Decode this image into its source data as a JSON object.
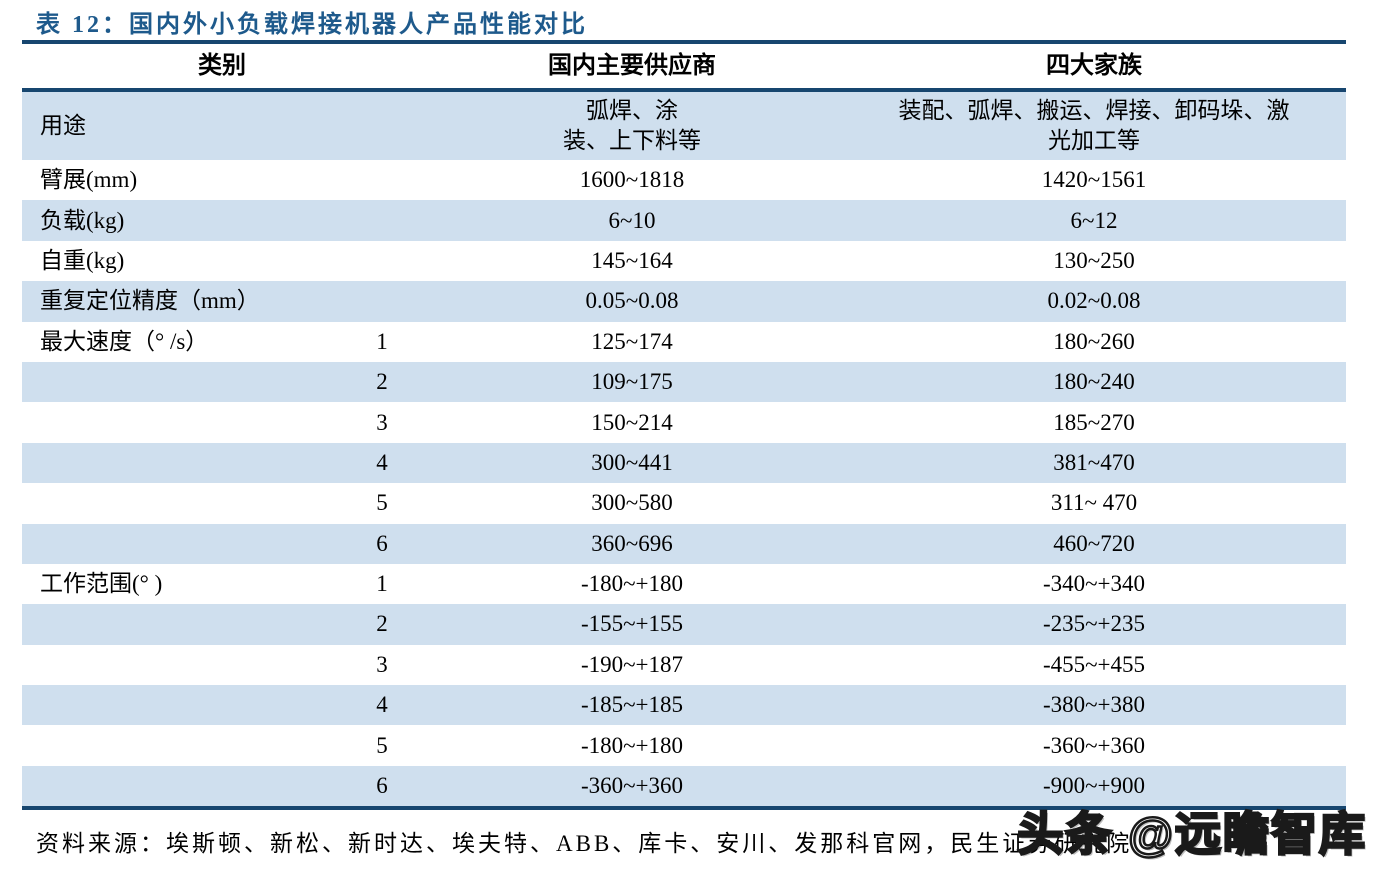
{
  "page": {
    "title": "表 12：国内外小负载焊接机器人产品性能对比"
  },
  "table": {
    "headers": {
      "category": "类别",
      "domestic": "国内主要供应商",
      "big_four": "四大家族"
    },
    "rows": [
      {
        "label": "用途",
        "axis": "",
        "domestic": "弧焊、涂\n装、上下料等",
        "big_four": "装配、弧焊、搬运、焊接、卸码垛、激\n光加工等"
      },
      {
        "label": "臂展(mm)",
        "axis": "",
        "domestic": "1600~1818",
        "big_four": "1420~1561"
      },
      {
        "label": "负载(kg)",
        "axis": "",
        "domestic": "6~10",
        "big_four": "6~12"
      },
      {
        "label": "自重(kg)",
        "axis": "",
        "domestic": "145~164",
        "big_four": "130~250"
      },
      {
        "label": "重复定位精度（mm）",
        "axis": "",
        "domestic": "0.05~0.08",
        "big_four": "0.02~0.08"
      },
      {
        "label": "最大速度（° /s）",
        "axis": "1",
        "domestic": "125~174",
        "big_four": "180~260"
      },
      {
        "label": "",
        "axis": "2",
        "domestic": "109~175",
        "big_four": "180~240"
      },
      {
        "label": "",
        "axis": "3",
        "domestic": "150~214",
        "big_four": "185~270"
      },
      {
        "label": "",
        "axis": "4",
        "domestic": "300~441",
        "big_four": "381~470"
      },
      {
        "label": "",
        "axis": "5",
        "domestic": "300~580",
        "big_four": "311~ 470"
      },
      {
        "label": "",
        "axis": "6",
        "domestic": "360~696",
        "big_four": "460~720"
      },
      {
        "label": "工作范围(° )",
        "axis": "1",
        "domestic": "-180~+180",
        "big_four": "-340~+340"
      },
      {
        "label": "",
        "axis": "2",
        "domestic": "-155~+155",
        "big_four": "-235~+235"
      },
      {
        "label": "",
        "axis": "3",
        "domestic": "-190~+187",
        "big_four": "-455~+455"
      },
      {
        "label": "",
        "axis": "4",
        "domestic": "-185~+185",
        "big_four": "-380~+380"
      },
      {
        "label": "",
        "axis": "5",
        "domestic": "-180~+180",
        "big_four": "-360~+360"
      },
      {
        "label": "",
        "axis": "6",
        "domestic": "-360~+360",
        "big_four": "-900~+900"
      }
    ]
  },
  "footer": {
    "source": "资料来源：埃斯顿、新松、新时达、埃夫特、ABB、库卡、安川、发那科官网，民生证券研究院"
  },
  "watermark": {
    "text": "头条 @远瞻智库"
  },
  "colors": {
    "title": "#1E5A8C",
    "rule": "#17466F",
    "band": "#CFDFEE",
    "watermark_outline": "#1a1a1a"
  }
}
